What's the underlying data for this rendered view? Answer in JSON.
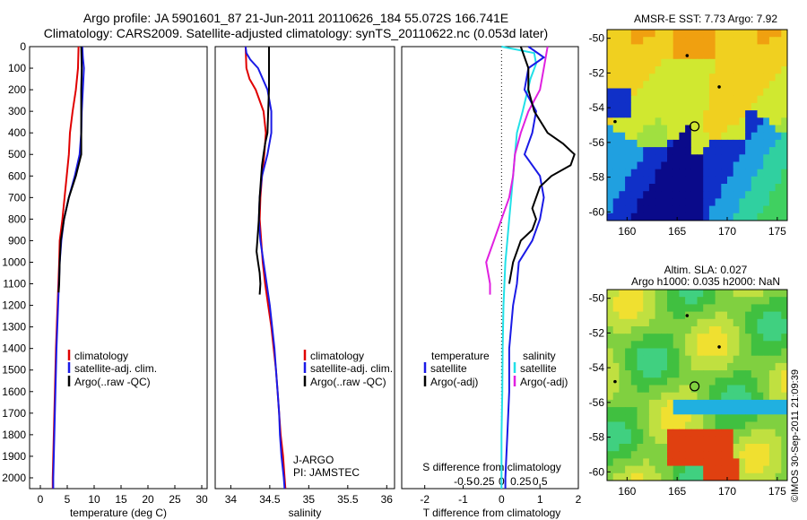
{
  "title_line1": "Argo profile: JA 5901601_87 21-Jun-2011 20110626_184 55.072S 166.741E",
  "title_line2": "Climatology: CARS2009. Satellite-adjusted climatology: synTS_20110622.nc (0.053d later)",
  "timestamp": "©IMOS 30-Sep-2011 21:09:39",
  "colors": {
    "climatology": "#e00000",
    "satellite": "#1a1ae6",
    "argo": "#000000",
    "sat_s": "#22e0e8",
    "argo_s": "#e020e0"
  },
  "chart_data": [
    {
      "type": "line",
      "xlabel": "temperature (deg C)",
      "ylim": [
        2050,
        0
      ],
      "xlim": [
        -2,
        31
      ],
      "xticks": [
        0,
        5,
        10,
        15,
        20,
        25,
        30
      ],
      "yticks": [
        0,
        100,
        200,
        300,
        400,
        500,
        600,
        700,
        800,
        900,
        1000,
        1100,
        1200,
        1300,
        1400,
        1500,
        1600,
        1700,
        1800,
        1900,
        2000
      ],
      "legend": [
        "climatology",
        "satellite-adj. clim.",
        "Argo(..raw -QC)"
      ],
      "legend_position": "lower-center",
      "series": [
        {
          "key": "climatology",
          "depth": [
            0,
            100,
            200,
            300,
            400,
            500,
            600,
            700,
            800,
            900,
            1000,
            1200,
            1400,
            1600,
            1800,
            2000,
            2050
          ],
          "values": [
            7.1,
            7.0,
            6.6,
            6.0,
            5.5,
            5.3,
            4.9,
            4.5,
            4.1,
            3.6,
            3.5,
            3.2,
            2.9,
            2.7,
            2.5,
            2.3,
            2.3
          ]
        },
        {
          "key": "satellite",
          "depth": [
            0,
            50,
            100,
            200,
            300,
            400,
            500,
            600,
            700,
            800,
            900,
            1000,
            1200,
            1400,
            1600,
            1800,
            2000,
            2050
          ],
          "values": [
            7.8,
            7.9,
            8.1,
            7.9,
            7.7,
            7.6,
            7.3,
            6.4,
            5.3,
            4.4,
            3.9,
            3.6,
            3.3,
            3.0,
            2.8,
            2.6,
            2.4,
            2.4
          ]
        },
        {
          "key": "argo",
          "depth": [
            0,
            100,
            200,
            300,
            400,
            500,
            600,
            700,
            800,
            900,
            1000,
            1100,
            1140
          ],
          "values": [
            7.6,
            7.7,
            7.6,
            7.6,
            7.6,
            7.6,
            6.6,
            5.3,
            4.4,
            3.8,
            3.6,
            3.5,
            3.4
          ]
        }
      ]
    },
    {
      "type": "line",
      "xlabel": "salinity",
      "ylim": [
        2050,
        0
      ],
      "xlim": [
        33.8,
        36.1
      ],
      "xticks": [
        34,
        34.5,
        35,
        35.5,
        36
      ],
      "legend": [
        "climatology",
        "satellite-adj. clim.",
        "Argo(..raw -QC)"
      ],
      "legend_position": "lower-right",
      "series": [
        {
          "key": "climatology",
          "depth": [
            0,
            100,
            150,
            200,
            300,
            400,
            500,
            600,
            700,
            800,
            900,
            1000,
            1100,
            1200,
            1300,
            1400,
            1500,
            1600,
            1700,
            1800,
            1900,
            2000,
            2050
          ],
          "values": [
            34.19,
            34.2,
            34.24,
            34.32,
            34.42,
            34.45,
            34.43,
            34.4,
            34.38,
            34.37,
            34.39,
            34.41,
            34.44,
            34.48,
            34.52,
            34.55,
            34.58,
            34.6,
            34.62,
            34.64,
            34.67,
            34.69,
            34.7
          ]
        },
        {
          "key": "satellite",
          "depth": [
            0,
            30,
            60,
            100,
            200,
            300,
            400,
            500,
            600,
            700,
            800,
            900,
            1000,
            1100,
            1200,
            1300,
            1400,
            1500,
            1600,
            1700,
            1800,
            1900,
            2000,
            2050
          ],
          "values": [
            34.19,
            34.2,
            34.25,
            34.35,
            34.47,
            34.52,
            34.52,
            34.47,
            34.4,
            34.37,
            34.36,
            34.38,
            34.42,
            34.46,
            34.5,
            34.53,
            34.56,
            34.58,
            34.6,
            34.62,
            34.63,
            34.65,
            34.68,
            34.69
          ]
        },
        {
          "key": "argo",
          "depth": [
            0,
            100,
            200,
            300,
            400,
            450,
            500,
            550,
            600,
            700,
            800,
            900,
            950,
            1000,
            1050,
            1100,
            1150
          ],
          "values": [
            34.49,
            34.49,
            34.49,
            34.48,
            34.47,
            34.44,
            34.42,
            34.4,
            34.39,
            34.37,
            34.36,
            34.34,
            34.33,
            34.35,
            34.37,
            34.38,
            34.37
          ]
        }
      ],
      "annotations": [
        "J-ARGO",
        "PI: JAMSTEC"
      ]
    },
    {
      "type": "line",
      "xlabel": "T difference from climatology",
      "xlabel_top": "S difference from climatology",
      "ylim": [
        2050,
        0
      ],
      "xlim": [
        -2.6,
        2.0
      ],
      "xticks": [
        -2,
        -1,
        0,
        1,
        2
      ],
      "s_ticks": [
        "-0.5",
        "-0.25",
        "0",
        "0.25",
        "0.5"
      ],
      "legend_temperature": [
        "temperature",
        "satellite",
        "Argo(-adj)"
      ],
      "legend_salinity": [
        "salinity",
        "satellite",
        "Argo(-adj)"
      ],
      "series": [
        {
          "key": "satellite",
          "depth": [
            0,
            50,
            100,
            200,
            300,
            400,
            450,
            500,
            600,
            700,
            800,
            900,
            1000,
            1100,
            1200,
            1400,
            1600,
            1800,
            2000,
            2050
          ],
          "values": [
            0.7,
            1.1,
            0.7,
            0.6,
            0.9,
            0.8,
            0.7,
            0.6,
            1.0,
            1.1,
            1.0,
            0.8,
            0.45,
            0.4,
            0.3,
            0.2,
            0.2,
            0.15,
            0.1,
            0.1
          ]
        },
        {
          "key": "argo",
          "depth": [
            0,
            100,
            200,
            300,
            400,
            450,
            500,
            550,
            600,
            650,
            700,
            750,
            800,
            850,
            900,
            1000,
            1100
          ],
          "values": [
            0.5,
            0.7,
            0.7,
            0.85,
            1.2,
            1.6,
            1.9,
            1.8,
            1.3,
            1.0,
            0.9,
            0.8,
            0.9,
            0.8,
            0.5,
            0.3,
            0.2
          ]
        },
        {
          "key": "sat_s",
          "depth": [
            0,
            30,
            80,
            150,
            300,
            400,
            500,
            600,
            700,
            800,
            900,
            1000,
            1200,
            1400,
            1600,
            1800,
            2000,
            2050
          ],
          "values": [
            0.0,
            0.85,
            0.9,
            0.75,
            0.55,
            0.4,
            0.35,
            0.3,
            0.25,
            0.2,
            0.15,
            0.1,
            0.05,
            0.03,
            0.02,
            0.0,
            0.0,
            0.0
          ]
        },
        {
          "key": "argo_s",
          "depth": [
            0,
            100,
            200,
            300,
            400,
            500,
            600,
            700,
            800,
            900,
            1000,
            1100,
            1150
          ],
          "values": [
            1.2,
            1.1,
            1.0,
            0.7,
            0.5,
            0.35,
            0.3,
            0.2,
            0.0,
            -0.2,
            -0.4,
            -0.3,
            -0.3
          ]
        }
      ]
    }
  ],
  "map_sst": {
    "title": "AMSR-E SST: 7.73 Argo: 7.92",
    "xticks": [
      160,
      165,
      170,
      175
    ],
    "yticks": [
      -50,
      -52,
      -54,
      -56,
      -58,
      -60
    ]
  },
  "map_sla": {
    "title_line1": "Altim. SLA: 0.027",
    "title_line2": "Argo h1000: 0.035 h2000: NaN",
    "xticks": [
      160,
      165,
      170,
      175
    ],
    "yticks": [
      -50,
      -52,
      -54,
      -56,
      -58,
      -60
    ]
  }
}
